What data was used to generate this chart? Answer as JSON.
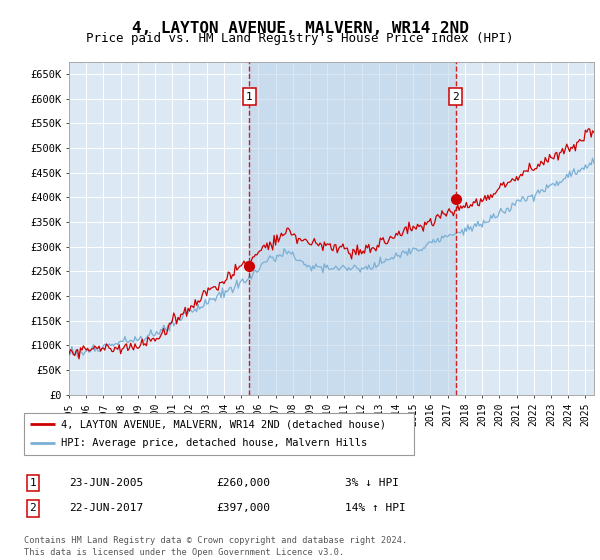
{
  "title": "4, LAYTON AVENUE, MALVERN, WR14 2ND",
  "subtitle": "Price paid vs. HM Land Registry's House Price Index (HPI)",
  "title_fontsize": 11.5,
  "subtitle_fontsize": 9,
  "ylabel_ticks": [
    "£0",
    "£50K",
    "£100K",
    "£150K",
    "£200K",
    "£250K",
    "£300K",
    "£350K",
    "£400K",
    "£450K",
    "£500K",
    "£550K",
    "£600K",
    "£650K"
  ],
  "ylabel_values": [
    0,
    50000,
    100000,
    150000,
    200000,
    250000,
    300000,
    350000,
    400000,
    450000,
    500000,
    550000,
    600000,
    650000
  ],
  "ylim": [
    0,
    675000
  ],
  "xmin_year": 1995.0,
  "xmax_year": 2025.5,
  "background_color": "#ffffff",
  "plot_bg_color": "#dce9f5",
  "grid_color": "#ffffff",
  "line_color_hpi": "#7bafd4",
  "line_color_price": "#cc0000",
  "sale1_x": 2005.48,
  "sale1_y": 260000,
  "sale2_x": 2017.47,
  "sale2_y": 397000,
  "legend_label1": "4, LAYTON AVENUE, MALVERN, WR14 2ND (detached house)",
  "legend_label2": "HPI: Average price, detached house, Malvern Hills",
  "annotation1_label": "23-JUN-2005",
  "annotation1_price": "£260,000",
  "annotation1_hpi": "3% ↓ HPI",
  "annotation2_label": "22-JUN-2017",
  "annotation2_price": "£397,000",
  "annotation2_hpi": "14% ↑ HPI",
  "footer": "Contains HM Land Registry data © Crown copyright and database right 2024.\nThis data is licensed under the Open Government Licence v3.0.",
  "xtick_years": [
    1995,
    1996,
    1997,
    1998,
    1999,
    2000,
    2001,
    2002,
    2003,
    2004,
    2005,
    2006,
    2007,
    2008,
    2009,
    2010,
    2011,
    2012,
    2013,
    2014,
    2015,
    2016,
    2017,
    2018,
    2019,
    2020,
    2021,
    2022,
    2023,
    2024,
    2025
  ]
}
